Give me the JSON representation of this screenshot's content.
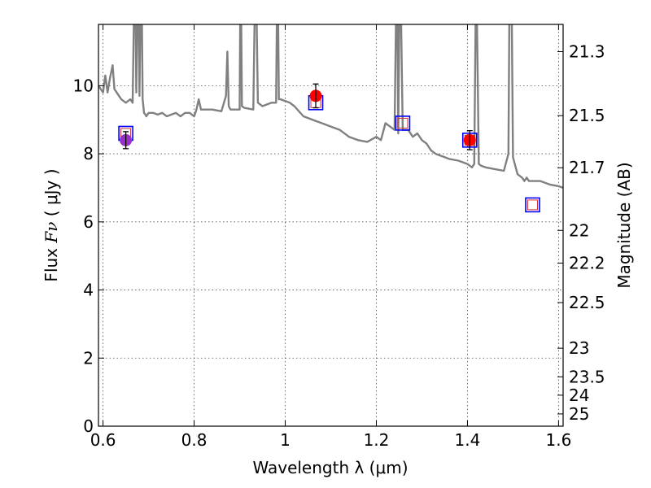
{
  "chart_data": {
    "type": "scatter",
    "xlabel": "Wavelength  λ (μm)",
    "ylabel_prefix": "Flux ",
    "ylabel_symbol": "Fν",
    "ylabel_suffix": " ( μJy )",
    "y2label": "Magnitude (AB)",
    "xlim": [
      0.59,
      1.61
    ],
    "ylim": [
      0,
      11.8
    ],
    "grid": true,
    "x_ticks": [
      0.6,
      0.8,
      1.0,
      1.2,
      1.4,
      1.6
    ],
    "x_tick_labels": [
      "0.6",
      "0.8",
      "1",
      "1.2",
      "1.4",
      "1.6"
    ],
    "y_ticks": [
      0,
      2,
      4,
      6,
      8,
      10
    ],
    "y_tick_labels": [
      "0",
      "2",
      "4",
      "6",
      "8",
      "10"
    ],
    "y2_ticks": [
      {
        "label": "21.3",
        "flux": 11.0
      },
      {
        "label": "21.5",
        "flux": 9.12
      },
      {
        "label": "21.7",
        "flux": 7.59
      },
      {
        "label": "22",
        "flux": 5.75
      },
      {
        "label": "22.2",
        "flux": 4.79
      },
      {
        "label": "22.5",
        "flux": 3.63
      },
      {
        "label": "23",
        "flux": 2.29
      },
      {
        "label": "23.5",
        "flux": 1.45
      },
      {
        "label": "24",
        "flux": 0.91
      },
      {
        "label": "25",
        "flux": 0.36
      }
    ],
    "colors": {
      "model": "#808080",
      "observed": "#ff0000",
      "observed_first": "#9b30c8",
      "model_box": "#0000ff",
      "model_box_inner": "#cc3333",
      "errorbar": "#000000"
    },
    "series": [
      {
        "role": "model_spectrum",
        "x": [
          0.59,
          0.595,
          0.6,
          0.605,
          0.61,
          0.615,
          0.618,
          0.621,
          0.625,
          0.63,
          0.64,
          0.65,
          0.66,
          0.665,
          0.67,
          0.673,
          0.676,
          0.68,
          0.684,
          0.687,
          0.69,
          0.693,
          0.695,
          0.7,
          0.71,
          0.72,
          0.73,
          0.74,
          0.75,
          0.76,
          0.77,
          0.78,
          0.79,
          0.8,
          0.805,
          0.81,
          0.815,
          0.82,
          0.84,
          0.86,
          0.87,
          0.873,
          0.876,
          0.88,
          0.9,
          0.902,
          0.905,
          0.91,
          0.93,
          0.935,
          0.94,
          0.95,
          0.96,
          0.97,
          0.98,
          0.983,
          0.986,
          0.99,
          1.0,
          1.01,
          1.02,
          1.04,
          1.06,
          1.08,
          1.1,
          1.12,
          1.14,
          1.16,
          1.18,
          1.2,
          1.21,
          1.22,
          1.23,
          1.24,
          1.245,
          1.248,
          1.252,
          1.258,
          1.27,
          1.28,
          1.29,
          1.3,
          1.31,
          1.32,
          1.33,
          1.34,
          1.35,
          1.36,
          1.38,
          1.4,
          1.41,
          1.415,
          1.418,
          1.421,
          1.425,
          1.43,
          1.44,
          1.46,
          1.48,
          1.49,
          1.493,
          1.496,
          1.5,
          1.51,
          1.52,
          1.525,
          1.53,
          1.535,
          1.54,
          1.56,
          1.58,
          1.6,
          1.61
        ],
        "y": [
          10.0,
          9.9,
          9.8,
          10.3,
          9.8,
          10.2,
          10.4,
          10.6,
          9.9,
          9.8,
          9.6,
          9.5,
          9.6,
          9.5,
          14.0,
          9.8,
          14.0,
          9.7,
          14.0,
          9.6,
          9.2,
          9.15,
          9.1,
          9.2,
          9.2,
          9.15,
          9.2,
          9.1,
          9.15,
          9.2,
          9.1,
          9.2,
          9.2,
          9.1,
          9.3,
          9.6,
          9.3,
          9.3,
          9.3,
          9.25,
          9.7,
          11.0,
          9.4,
          9.3,
          9.3,
          14.0,
          9.4,
          9.35,
          9.3,
          14.0,
          9.5,
          9.4,
          9.45,
          9.5,
          9.5,
          14.0,
          9.6,
          9.6,
          9.55,
          9.5,
          9.4,
          9.1,
          9.0,
          8.9,
          8.8,
          8.7,
          8.5,
          8.4,
          8.35,
          8.5,
          8.4,
          8.9,
          8.8,
          8.7,
          14.0,
          8.6,
          14.0,
          8.7,
          8.7,
          8.5,
          8.6,
          8.4,
          8.3,
          8.1,
          8.0,
          7.95,
          7.9,
          7.85,
          7.8,
          7.7,
          7.6,
          7.7,
          12.0,
          11.8,
          7.7,
          7.65,
          7.6,
          7.55,
          7.5,
          8.0,
          14.0,
          14.0,
          7.9,
          7.4,
          7.3,
          7.2,
          7.3,
          7.2,
          7.2,
          7.2,
          7.1,
          7.05,
          7.0
        ]
      },
      {
        "role": "model_photometry",
        "x": [
          0.65,
          1.067,
          1.258,
          1.405,
          1.543
        ],
        "y": [
          8.6,
          9.5,
          8.9,
          8.4,
          6.5
        ]
      },
      {
        "role": "observed_photometry",
        "x": [
          0.65,
          1.067,
          1.405
        ],
        "y": [
          8.4,
          9.7,
          8.4
        ],
        "err": [
          0.25,
          0.35,
          0.28
        ]
      }
    ]
  }
}
